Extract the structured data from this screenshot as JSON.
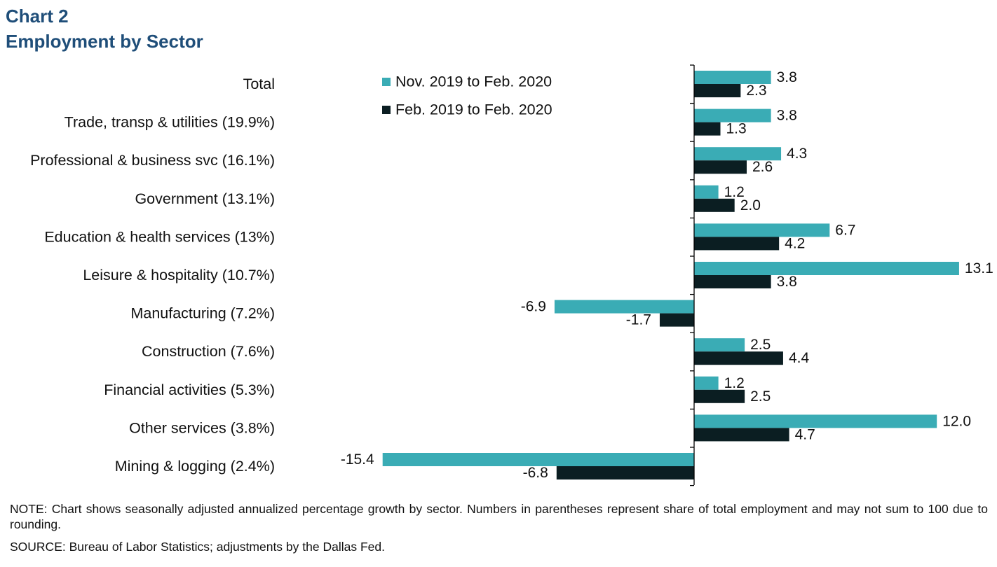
{
  "header": {
    "chart_label": "Chart 2",
    "title": "Employment by Sector"
  },
  "footer": {
    "note": "NOTE: Chart shows seasonally adjusted annualized  percentage growth by sector. Numbers in parentheses represent share of total employment and may not sum to 100 due to rounding.",
    "source": "SOURCE: Bureau of Labor Statistics; adjustments by the Dallas Fed."
  },
  "colors": {
    "series1": "#3aacb5",
    "series2": "#0b1e22",
    "axis": "#000000"
  },
  "chart_data": {
    "type": "bar",
    "orientation": "horizontal",
    "title": "Employment by Sector",
    "categories": [
      "Total",
      "Trade, transp & utilities (19.9%)",
      "Professional & business svc (16.1%)",
      "Government (13.1%)",
      "Education & health services (13%)",
      "Leisure & hospitality (10.7%)",
      "Manufacturing (7.2%)",
      "Construction (7.6%)",
      "Financial activities (5.3%)",
      "Other services (3.8%)",
      "Mining & logging (2.4%)"
    ],
    "series": [
      {
        "name": "Nov. 2019 to Feb. 2020",
        "values": [
          3.8,
          3.8,
          4.3,
          1.2,
          6.7,
          13.1,
          -6.9,
          2.5,
          1.2,
          12.0,
          -15.4
        ],
        "labels": [
          "3.8",
          "3.8",
          "4.3",
          "1.2",
          "6.7",
          "13.1",
          "-6.9",
          "2.5",
          "1.2",
          "12.0",
          "-15.4"
        ]
      },
      {
        "name": "Feb. 2019 to Feb. 2020",
        "values": [
          2.3,
          1.3,
          2.6,
          2.0,
          4.2,
          3.8,
          -1.7,
          4.4,
          2.5,
          4.7,
          -6.8
        ],
        "labels": [
          "2.3",
          "1.3",
          "2.6",
          "2.0",
          "4.2",
          "3.8",
          "-1.7",
          "4.4",
          "2.5",
          "4.7",
          "-6.8"
        ]
      }
    ],
    "legend_position": "top-center",
    "grid": false,
    "xlim": [
      -15.4,
      13.1
    ]
  }
}
